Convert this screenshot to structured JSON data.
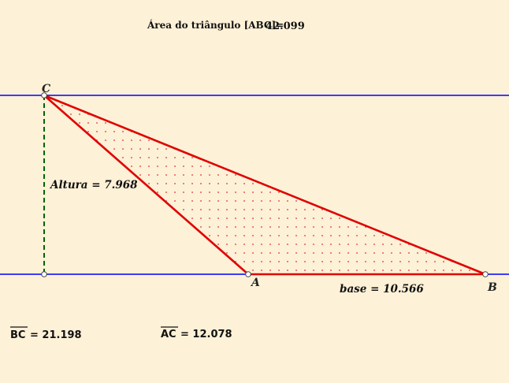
{
  "area_label": "Área do triângulo [ABC]=",
  "area_value": "42.099",
  "points": {
    "A": "A",
    "B": "B",
    "C": "C"
  },
  "height_label": "Altura = 7.968",
  "base_label": "base = 10.566",
  "bc_label": "BC",
  "bc_value": "= 21.198",
  "ac_label": "AC",
  "ac_value": "= 12.078",
  "colors": {
    "background": "#fdf1d7",
    "parallel_lines": "#0000ff",
    "triangle": "#e00000",
    "height_line": "#006400"
  }
}
